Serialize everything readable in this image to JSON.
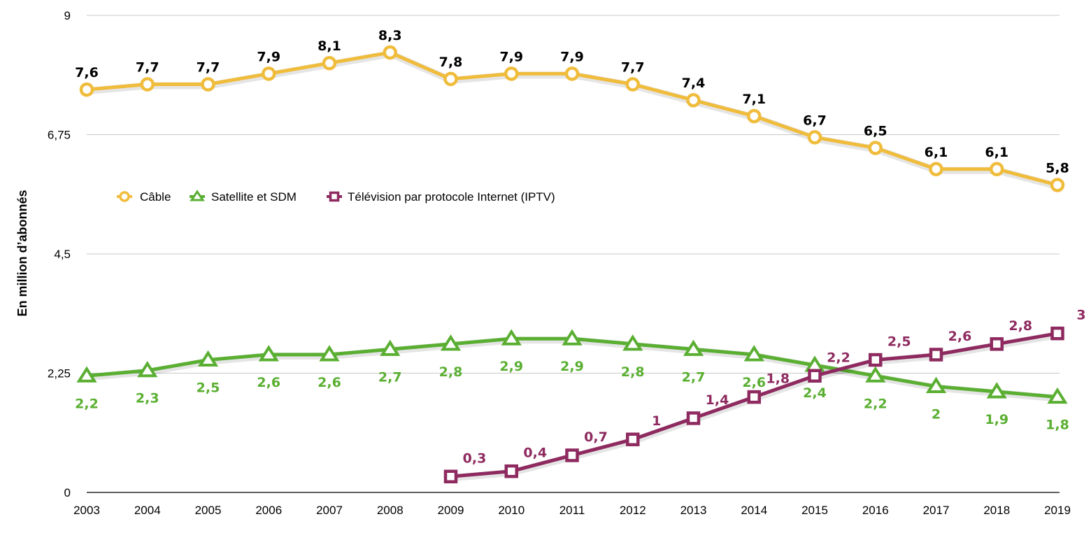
{
  "chart_data": {
    "type": "line",
    "title": "",
    "xlabel": "",
    "ylabel": "En million d’abonnés",
    "ylim": [
      0,
      9
    ],
    "yticks": [
      0,
      2.25,
      4.5,
      6.75,
      9
    ],
    "ytick_labels": [
      "0",
      "2,25",
      "4,5",
      "6,75",
      "9"
    ],
    "grid": true,
    "legend_position": "left",
    "x": [
      "2003",
      "2004",
      "2005",
      "2006",
      "2007",
      "2008",
      "2009",
      "2010",
      "2011",
      "2012",
      "2013",
      "2014",
      "2015",
      "2016",
      "2017",
      "2018",
      "2019"
    ],
    "series": [
      {
        "name": "Câble",
        "color": "#f0bc3c",
        "marker": "circle",
        "label_position": "above",
        "label_color": "#000000",
        "values": [
          7.6,
          7.7,
          7.7,
          7.9,
          8.1,
          8.3,
          7.8,
          7.9,
          7.9,
          7.7,
          7.4,
          7.1,
          6.7,
          6.5,
          6.1,
          6.1,
          5.8
        ],
        "labels": [
          "7,6",
          "7,7",
          "7,7",
          "7,9",
          "8,1",
          "8,3",
          "7,8",
          "7,9",
          "7,9",
          "7,7",
          "7,4",
          "7,1",
          "6,7",
          "6,5",
          "6,1",
          "6,1",
          "5,8"
        ]
      },
      {
        "name": "Satellite et SDM",
        "color": "#5aaf32",
        "marker": "triangle",
        "label_position": "below",
        "label_color": "#5aaf32",
        "values": [
          2.2,
          2.3,
          2.5,
          2.6,
          2.6,
          2.7,
          2.8,
          2.9,
          2.9,
          2.8,
          2.7,
          2.6,
          2.4,
          2.2,
          2.0,
          1.9,
          1.8
        ],
        "labels": [
          "2,2",
          "2,3",
          "2,5",
          "2,6",
          "2,6",
          "2,7",
          "2,8",
          "2,9",
          "2,9",
          "2,8",
          "2,7",
          "2,6",
          "2,4",
          "2,2",
          "2",
          "1,9",
          "1,8"
        ]
      },
      {
        "name": "Télévision par protocole Internet (IPTV)",
        "color": "#8e2a5f",
        "marker": "square",
        "label_position": "upper-right",
        "label_color": "#8e2a5f",
        "values": [
          null,
          null,
          null,
          null,
          null,
          null,
          0.3,
          0.4,
          0.7,
          1.0,
          1.4,
          1.8,
          2.2,
          2.5,
          2.6,
          2.8,
          3.0
        ],
        "labels": [
          "",
          "",
          "",
          "",
          "",
          "",
          "0,3",
          "0,4",
          "0,7",
          "1",
          "1,4",
          "1,8",
          "2,2",
          "2,5",
          "2,6",
          "2,8",
          "3"
        ]
      }
    ]
  }
}
